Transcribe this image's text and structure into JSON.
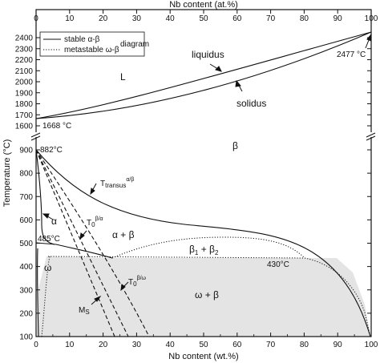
{
  "chart_data": {
    "type": "diagram",
    "top_axis_label": "Nb content (at.%)",
    "bottom_axis_label": "Nb content (wt.%)",
    "y_axis_label": "Temperature (°C)",
    "top_ticks": [
      "0",
      "10",
      "20",
      "30",
      "40",
      "50",
      "60",
      "70",
      "80",
      "90",
      "100"
    ],
    "bottom_ticks": [
      "0",
      "10",
      "20",
      "30",
      "40",
      "50",
      "60",
      "70",
      "80",
      "90",
      "100"
    ],
    "y_ticks_upper": [
      "1600",
      "1700",
      "1800",
      "1900",
      "2000",
      "2100",
      "2200",
      "2300",
      "2400"
    ],
    "y_ticks_lower": [
      "100",
      "200",
      "300",
      "400",
      "500",
      "600",
      "700",
      "800",
      "900"
    ],
    "legend": [
      {
        "style": "solid",
        "label": "stable α-β"
      },
      {
        "style": "dotted",
        "label": "metastable ω-β"
      }
    ],
    "legend_suffix": "diagram",
    "labels": {
      "L": "L",
      "liquidus": "liquidus",
      "solidus": "solidus",
      "nb_melt": "2477 °C",
      "ti_melt": "1668 °C",
      "beta": "β",
      "transus_ti": "882°C",
      "alpha": "α",
      "alpha_beta": "α + β",
      "eutectoid_temp": "485°C",
      "omega": "ω",
      "beta1_beta2_main": "β",
      "beta1_beta2_sub1": "1",
      "beta1_beta2_plus": " + β",
      "beta1_beta2_sub2": "2",
      "miscibility_temp": "430°C",
      "omega_beta": "ω + β",
      "ttransus_main": "T",
      "ttransus_sub": "transus",
      "ttransus_sup": "α/β",
      "t0_alpha_main": "T",
      "t0_alpha_sub": "0",
      "t0_alpha_sup": "β/α",
      "t0_omega_main": "T",
      "t0_omega_sub": "0",
      "t0_omega_sup": "β/ω",
      "ms_main": "M",
      "ms_sub": "S"
    },
    "curves_wt_pct_vs_temp_C": {
      "liquidus": [
        [
          0,
          1668
        ],
        [
          20,
          1760
        ],
        [
          40,
          1880
        ],
        [
          60,
          2030
        ],
        [
          80,
          2220
        ],
        [
          100,
          2477
        ]
      ],
      "solidus": [
        [
          0,
          1668
        ],
        [
          20,
          1730
        ],
        [
          40,
          1820
        ],
        [
          60,
          1950
        ],
        [
          80,
          2160
        ],
        [
          100,
          2477
        ]
      ],
      "beta_transus": [
        [
          0,
          882
        ],
        [
          8,
          800
        ],
        [
          15,
          720
        ],
        [
          25,
          650
        ],
        [
          35,
          610
        ],
        [
          50,
          585
        ],
        [
          65,
          575
        ],
        [
          75,
          560
        ],
        [
          85,
          490
        ],
        [
          95,
          340
        ],
        [
          100,
          100
        ]
      ],
      "alpha_solvus": [
        [
          0,
          882
        ],
        [
          3,
          810
        ],
        [
          5,
          700
        ],
        [
          6,
          600
        ],
        [
          7,
          500
        ],
        [
          9,
          485
        ]
      ],
      "ms": [
        [
          0,
          882
        ],
        [
          10,
          700
        ],
        [
          20,
          500
        ],
        [
          30,
          300
        ],
        [
          37,
          100
        ]
      ],
      "t0_beta_alpha": [
        [
          0,
          882
        ],
        [
          12,
          700
        ],
        [
          24,
          500
        ],
        [
          36,
          300
        ],
        [
          45,
          100
        ]
      ],
      "t0_beta_omega": [
        [
          0,
          882
        ],
        [
          15,
          650
        ],
        [
          27,
          450
        ],
        [
          38,
          300
        ],
        [
          50,
          100
        ]
      ],
      "miscibility_gap": [
        [
          36,
          430
        ],
        [
          45,
          480
        ],
        [
          55,
          495
        ],
        [
          65,
          495
        ],
        [
          75,
          480
        ],
        [
          85,
          430
        ]
      ],
      "omega_beta_boundary": [
        [
          5,
          100
        ],
        [
          8,
          300
        ],
        [
          12,
          430
        ],
        [
          30,
          432
        ],
        [
          60,
          432
        ],
        [
          90,
          432
        ],
        [
          96,
          350
        ],
        [
          99,
          150
        ],
        [
          100,
          100
        ]
      ]
    },
    "x_range_wt_pct": [
      0,
      100
    ],
    "y_range_upper_C": [
      1600,
      2480
    ],
    "y_range_lower_C": [
      100,
      900
    ]
  }
}
